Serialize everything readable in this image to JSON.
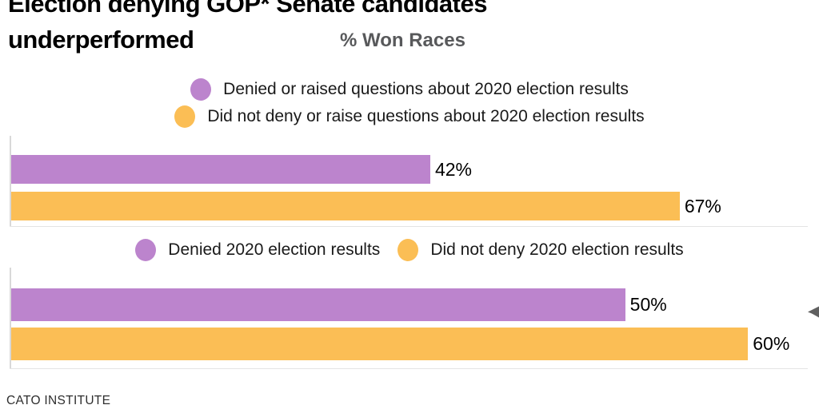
{
  "header": {
    "title_line1": "Election denying GOP* Senate candidates",
    "title_line2": "underperformed",
    "subtitle": "% Won Races"
  },
  "footer": {
    "source": "CATO INSTITUTE"
  },
  "colors": {
    "denier_purple": "#bc84cd",
    "non_denier_orange": "#fbbe55",
    "axis_line": "#d9d9d9",
    "subtitle_gray": "#58595b",
    "cursor_gray": "#606060"
  },
  "chart_data": [
    {
      "type": "bar",
      "orientation": "horizontal",
      "value_format": "percent",
      "xlim": [
        0,
        80
      ],
      "grid": false,
      "legend_position": "top-center",
      "legend": [
        {
          "name": "Denied or raised questions about 2020 election results",
          "color": "#bc84cd"
        },
        {
          "name": "Did not deny or raise questions about 2020 election results",
          "color": "#fbbe55"
        }
      ],
      "bars": [
        {
          "series": "Denied or raised questions about 2020 election results",
          "value": 42,
          "label": "42%",
          "color": "#bc84cd"
        },
        {
          "series": "Did not deny or raise questions about 2020 election results",
          "value": 67,
          "label": "67%",
          "color": "#fbbe55"
        }
      ]
    },
    {
      "type": "bar",
      "orientation": "horizontal",
      "value_format": "percent",
      "xlim": [
        0,
        65
      ],
      "grid": false,
      "legend_position": "top-center",
      "legend": [
        {
          "name": "Denied 2020 election results",
          "color": "#bc84cd"
        },
        {
          "name": "Did not deny 2020 election results",
          "color": "#fbbe55"
        }
      ],
      "bars": [
        {
          "series": "Denied 2020 election results",
          "value": 50,
          "label": "50%",
          "color": "#bc84cd"
        },
        {
          "series": "Did not deny 2020 election results",
          "value": 60,
          "label": "60%",
          "color": "#fbbe55"
        }
      ]
    }
  ]
}
